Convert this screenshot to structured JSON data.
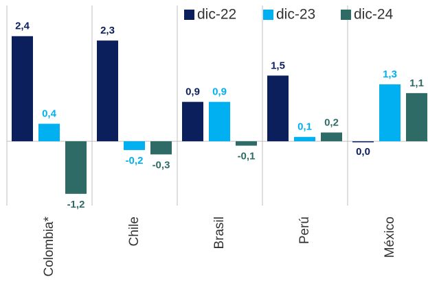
{
  "chart_data": {
    "type": "bar",
    "categories": [
      "Colombia*",
      "Chile",
      "Brasil",
      "Perú",
      "México"
    ],
    "series": [
      {
        "name": "dic-22",
        "color": "#0b1f5c",
        "values": [
          2.4,
          2.3,
          0.9,
          1.5,
          0.0
        ],
        "value_labels": [
          "2,4",
          "2,3",
          "0,9",
          "1,5",
          "0,0"
        ]
      },
      {
        "name": "dic-23",
        "color": "#00b0f0",
        "values": [
          0.4,
          -0.2,
          0.9,
          0.1,
          1.3
        ],
        "value_labels": [
          "0,4",
          "-0,2",
          "0,9",
          "0,1",
          "1,3"
        ]
      },
      {
        "name": "dic-24",
        "color": "#2e6b66",
        "values": [
          -1.2,
          -0.3,
          -0.1,
          0.2,
          1.1
        ],
        "value_labels": [
          "-1,2",
          "-0,3",
          "-0,1",
          "0,2",
          "1,1"
        ]
      }
    ],
    "ylim": [
      -1.5,
      2.6
    ],
    "legend": "top-right"
  }
}
